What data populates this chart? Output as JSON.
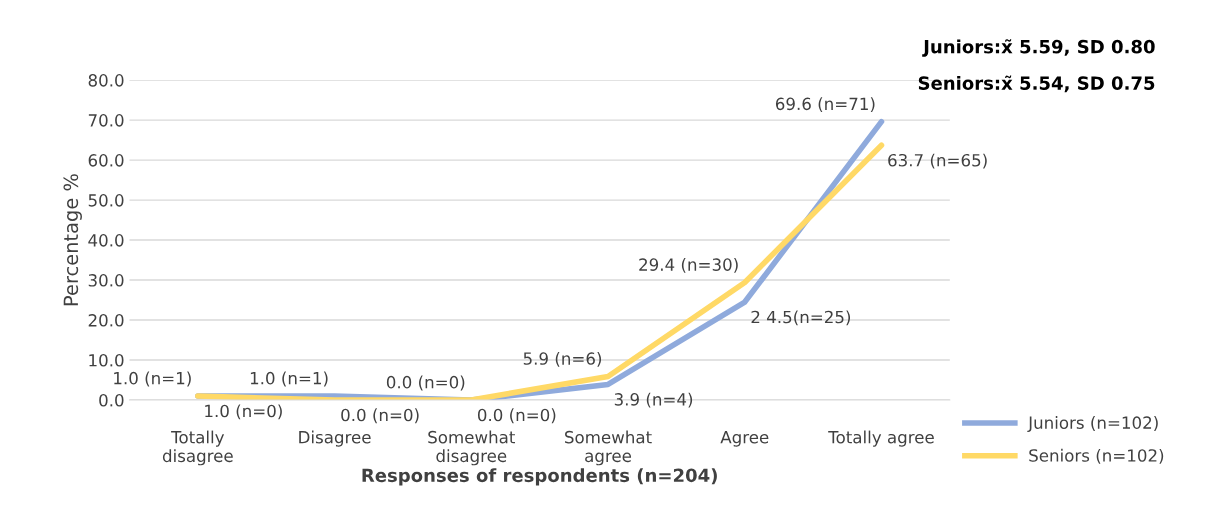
{
  "chart_data": {
    "type": "line",
    "xlabel": "Responses of respondents (n=204)",
    "ylabel": "Percentage %",
    "categories": [
      "Totally\ndisagree",
      "Disagree",
      "Somewhat\ndisagree",
      "Somewhat\nagree",
      "Agree",
      "Totally agree"
    ],
    "series": [
      {
        "name": "Juniors (n=102)",
        "color": "#8faadc",
        "values": [
          1.0,
          1.0,
          0.0,
          3.9,
          24.5,
          69.6
        ],
        "value_labels": [
          "1.0 (n=1)",
          "1.0 (n=1)",
          "0.0 (n=0)",
          "3.9 (n=4)",
          "2 4.5(n=25)",
          "69.6 (n=71)"
        ]
      },
      {
        "name": "Seniors (n=102)",
        "color": "#ffd966",
        "values": [
          1.0,
          0.0,
          0.0,
          5.9,
          29.4,
          63.7
        ],
        "value_labels": [
          "1.0 (n=0)",
          "0.0 (n=0)",
          "0.0 (n=0)",
          "5.9 (n=6)",
          "29.4 (n=30)",
          "63.7 (n=65)"
        ]
      }
    ],
    "ylim": [
      0,
      80
    ],
    "yticks": [
      {
        "value": 0,
        "label": "0.0"
      },
      {
        "value": 10,
        "label": "10.0"
      },
      {
        "value": 20,
        "label": "20.0"
      },
      {
        "value": 30,
        "label": "30.0"
      },
      {
        "value": 40,
        "label": "40.0"
      },
      {
        "value": 50,
        "label": "50.0"
      },
      {
        "value": 60,
        "label": "60.0"
      },
      {
        "value": 70,
        "label": "70.0"
      },
      {
        "value": 80,
        "label": "80.0"
      }
    ],
    "grid": "y",
    "legend": "bottom right",
    "marker": "none",
    "line_style": "solid",
    "annotations": [
      "Juniors:x̃ 5.59, SD 0.80",
      "Seniors:x̃ 5.54, SD 0.75"
    ]
  }
}
